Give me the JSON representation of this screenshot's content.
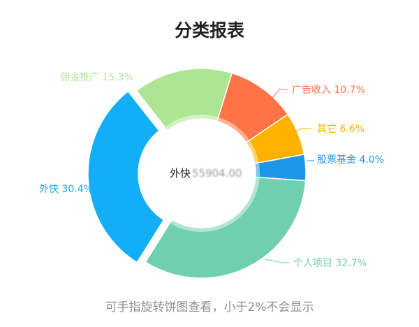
{
  "chart_data": {
    "type": "pie",
    "title": "分类报表",
    "hole": true,
    "start_angle_deg": 90,
    "direction": "clockwise",
    "slices": [
      {
        "name": "股票基金",
        "percent": 4.0,
        "label": "股票基金 4.0%",
        "color": "#1E96E8"
      },
      {
        "name": "个人项目",
        "percent": 32.7,
        "label": "个人项目 32.7%",
        "color": "#6FCFAF"
      },
      {
        "name": "外快",
        "percent": 30.4,
        "label": "外快 30.4%",
        "color": "#12AEF7"
      },
      {
        "name": "佣金推广",
        "percent": 15.3,
        "label": "佣金推广 15.3%",
        "color": "#ACE693"
      },
      {
        "name": "广告收入",
        "percent": 10.7,
        "label": "广告收入 10.7%",
        "color": "#FF7346"
      },
      {
        "name": "其它",
        "percent": 6.6,
        "label": "其它 6.6%",
        "color": "#FFB300"
      }
    ],
    "highlighted_slice": "外快",
    "center": {
      "label": "外快",
      "value": "55904.00"
    },
    "hint": "可手指旋转饼图查看，小于2%不会显示"
  }
}
